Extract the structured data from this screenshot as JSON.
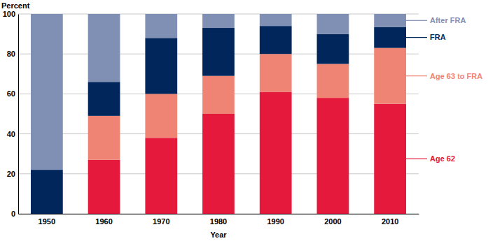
{
  "chart_data": {
    "type": "bar",
    "stacked": true,
    "grid": true,
    "legend": "right",
    "y_label": "Percent",
    "x_label": "Year",
    "categories": [
      "1950",
      "1960",
      "1970",
      "1980",
      "1990",
      "2000",
      "2010"
    ],
    "series": [
      {
        "name": "Age 62",
        "color": "#e4193b",
        "values": [
          0,
          27,
          38,
          50,
          61,
          58,
          55
        ]
      },
      {
        "name": "Age 63 to FRA",
        "color": "#f08474",
        "values": [
          0,
          22,
          22,
          19,
          19,
          17,
          28
        ]
      },
      {
        "name": "FRA",
        "color": "#00265b",
        "values": [
          22,
          17,
          28,
          24,
          14,
          15,
          10.5
        ]
      },
      {
        "name": "After FRA",
        "color": "#7f90b4",
        "values": [
          78,
          34,
          12,
          7,
          6,
          10,
          6.5
        ]
      }
    ],
    "ylim": [
      0,
      100
    ],
    "yticks": [
      0,
      20,
      40,
      60,
      80,
      100
    ]
  }
}
